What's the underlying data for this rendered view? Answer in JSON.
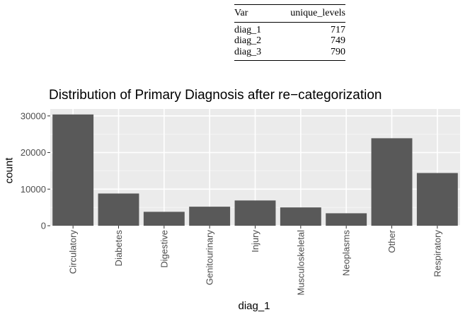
{
  "table": {
    "headers": [
      "Var",
      "unique_levels"
    ],
    "rows": [
      {
        "var": "diag_1",
        "levels": "717"
      },
      {
        "var": "diag_2",
        "levels": "749"
      },
      {
        "var": "diag_3",
        "levels": "790"
      }
    ]
  },
  "chart_data": {
    "type": "bar",
    "title": "Distribution of Primary Diagnosis after re−categorization",
    "xlabel": "diag_1",
    "ylabel": "count",
    "categories": [
      "Circulatory",
      "Diabetes",
      "Digestive",
      "Genitourinary",
      "Injury",
      "Musculoskeletal",
      "Neoplasms",
      "Other",
      "Respiratory"
    ],
    "values": [
      30400,
      8800,
      3800,
      5200,
      6900,
      5000,
      3400,
      23900,
      14400
    ],
    "ylim": [
      0,
      31900
    ],
    "yticks": [
      0,
      10000,
      20000,
      30000
    ],
    "ytick_labels": [
      "0",
      "10000",
      "20000",
      "30000"
    ],
    "grid": true,
    "bar_color": "#595959",
    "panel_color": "#ebebeb"
  }
}
